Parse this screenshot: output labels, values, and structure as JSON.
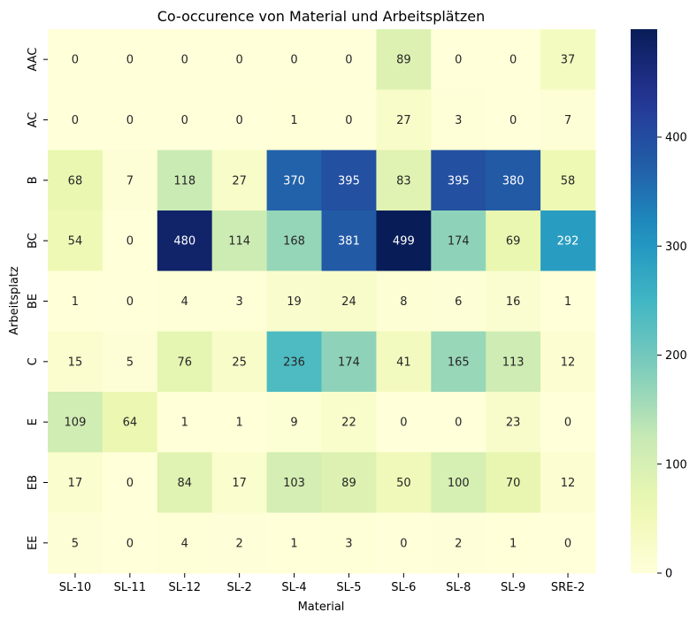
{
  "chart_data": {
    "type": "heatmap",
    "title": "Co-occurence von Material und Arbeitsplätzen",
    "xlabel": "Material",
    "ylabel": "Arbeitsplatz",
    "x_categories": [
      "SL-10",
      "SL-11",
      "SL-12",
      "SL-2",
      "SL-4",
      "SL-5",
      "SL-6",
      "SL-8",
      "SL-9",
      "SRE-2"
    ],
    "y_categories": [
      "AAC",
      "AC",
      "B",
      "BC",
      "BE",
      "C",
      "E",
      "EB",
      "EE"
    ],
    "values": [
      [
        0,
        0,
        0,
        0,
        0,
        0,
        89,
        0,
        0,
        37
      ],
      [
        0,
        0,
        0,
        0,
        1,
        0,
        27,
        3,
        0,
        7
      ],
      [
        68,
        7,
        118,
        27,
        370,
        395,
        83,
        395,
        380,
        58
      ],
      [
        54,
        0,
        480,
        114,
        168,
        381,
        499,
        174,
        69,
        292
      ],
      [
        1,
        0,
        4,
        3,
        19,
        24,
        8,
        6,
        16,
        1
      ],
      [
        15,
        5,
        76,
        25,
        236,
        174,
        41,
        165,
        113,
        12
      ],
      [
        109,
        64,
        1,
        1,
        9,
        22,
        0,
        0,
        23,
        0
      ],
      [
        17,
        0,
        84,
        17,
        103,
        89,
        50,
        100,
        70,
        12
      ],
      [
        5,
        0,
        4,
        2,
        1,
        3,
        0,
        2,
        1,
        0
      ]
    ],
    "colormap": "YlGnBu",
    "vmin": 0,
    "vmax": 499,
    "colorbar_ticks": [
      0,
      100,
      200,
      300,
      400
    ]
  }
}
